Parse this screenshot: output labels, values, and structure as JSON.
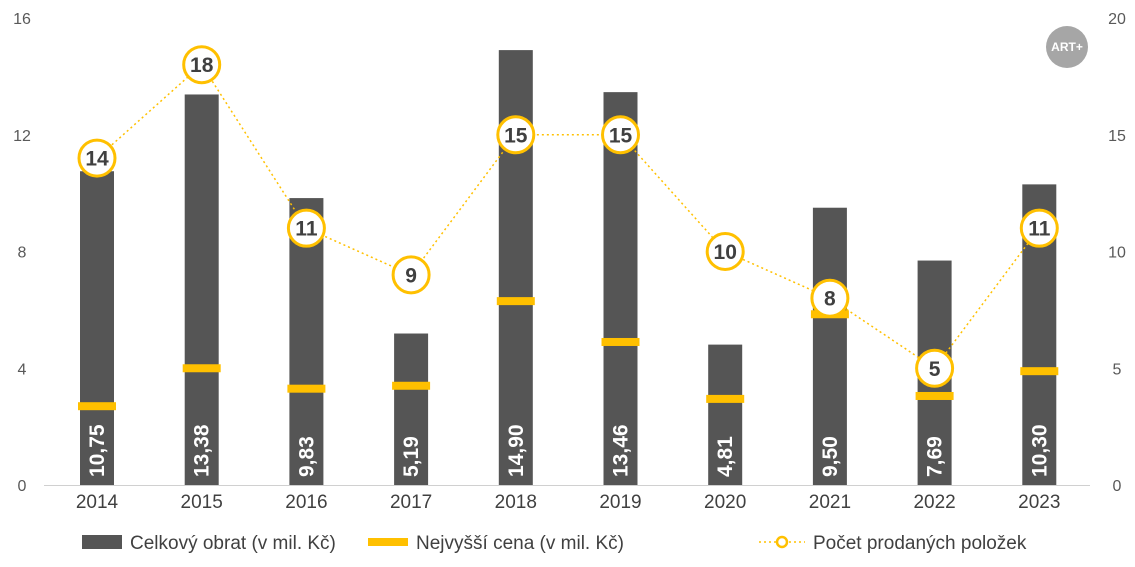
{
  "logo": {
    "text": "ART+"
  },
  "colors": {
    "bar": "#555555",
    "accent": "#FFC000",
    "text": "#404040"
  },
  "chart_data": {
    "type": "bar",
    "categories": [
      "2014",
      "2015",
      "2016",
      "2017",
      "2018",
      "2019",
      "2020",
      "2021",
      "2022",
      "2023"
    ],
    "series": [
      {
        "name": "Celkový obrat (v mil. Kč)",
        "kind": "bar",
        "axis": "left",
        "values": [
          10.75,
          13.38,
          9.83,
          5.19,
          14.9,
          13.46,
          4.81,
          9.5,
          7.69,
          10.3
        ],
        "labels": [
          "10,75",
          "13,38",
          "9,83",
          "5,19",
          "14,90",
          "13,46",
          "4,81",
          "9,50",
          "7,69",
          "10,30"
        ]
      },
      {
        "name": "Nejvyšší cena (v mil. Kč)",
        "kind": "marker",
        "axis": "left",
        "values": [
          2.7,
          4.0,
          3.3,
          3.4,
          6.3,
          4.9,
          2.95,
          5.85,
          3.05,
          3.9
        ]
      },
      {
        "name": "Počet prodaných položek",
        "kind": "line",
        "axis": "right",
        "values": [
          14,
          18,
          11,
          9,
          15,
          15,
          10,
          8,
          5,
          11
        ],
        "labels": [
          "14",
          "18",
          "11",
          "9",
          "15",
          "15",
          "10",
          "8",
          "5",
          "11"
        ]
      }
    ],
    "y_left": {
      "lim": [
        0,
        16
      ],
      "ticks": [
        "0",
        "4",
        "8",
        "12",
        "16"
      ]
    },
    "y_right": {
      "lim": [
        0,
        20
      ],
      "ticks": [
        "0",
        "5",
        "10",
        "15",
        "20"
      ]
    },
    "legend_position": "bottom"
  }
}
